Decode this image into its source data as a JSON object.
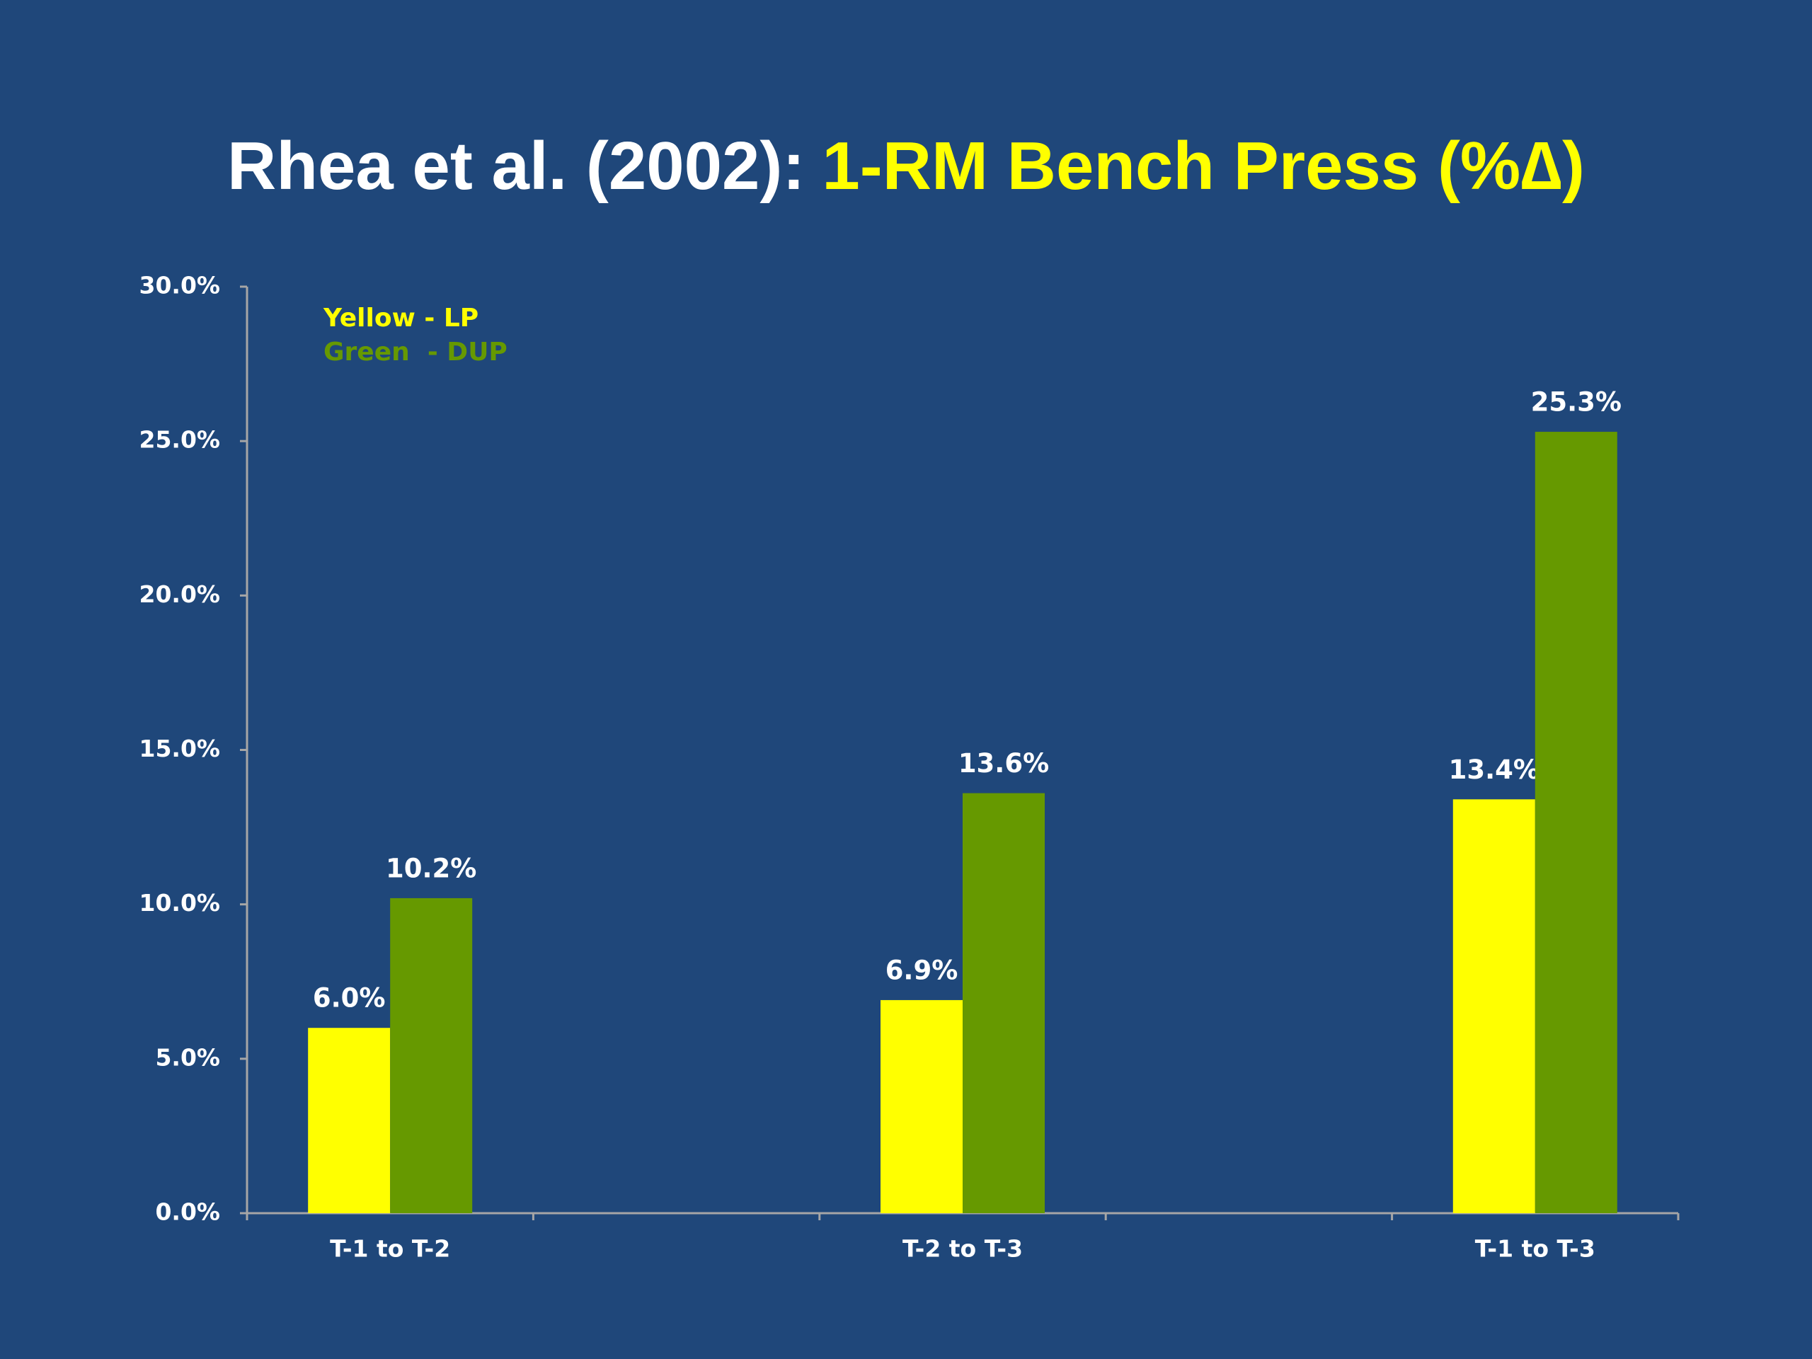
{
  "chart_data": {
    "type": "bar",
    "title_parts": [
      "Rhea et al. (2002):",
      "1-RM Bench Press (%∆)"
    ],
    "categories": [
      "T-1 to T-2",
      "T-2 to T-3",
      "T-1 to T-3"
    ],
    "series": [
      {
        "name": "Yellow - LP",
        "color": "#ffff00",
        "values": [
          6.0,
          6.9,
          13.4
        ],
        "value_labels": [
          "6.0%",
          "6.9%",
          "13.4%"
        ]
      },
      {
        "name": "Green  - DUP",
        "color": "#669900",
        "values": [
          10.2,
          13.6,
          25.3
        ],
        "value_labels": [
          "10.2%",
          "13.6%",
          "25.3%"
        ]
      }
    ],
    "ylim": [
      0,
      30
    ],
    "yticks": [
      {
        "value": 0,
        "label": "0.0%"
      },
      {
        "value": 5,
        "label": "5.0%"
      },
      {
        "value": 10,
        "label": "10.0%"
      },
      {
        "value": 15,
        "label": "15.0%"
      },
      {
        "value": 20,
        "label": "20.0%"
      },
      {
        "value": 25,
        "label": "25.0%"
      },
      {
        "value": 30,
        "label": "30.0%"
      }
    ],
    "grid": false,
    "legend": "top-left"
  }
}
